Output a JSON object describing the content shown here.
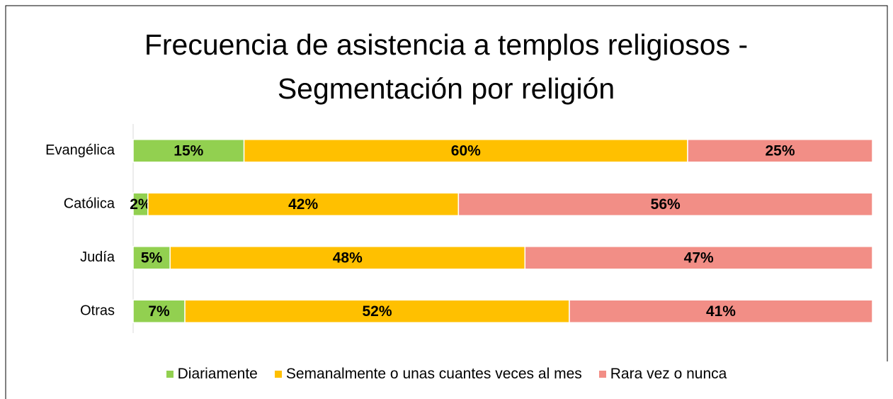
{
  "chart_data": {
    "type": "stacked_bar_horizontal",
    "title": "Frecuencia de asistencia a templos religiosos - Segmentación por religión",
    "categories": [
      "Evangélica",
      "Católica",
      "Judía",
      "Otras"
    ],
    "xlim": [
      0,
      100
    ],
    "series": [
      {
        "name": "Diariamente",
        "color": "#92d050",
        "values": [
          15,
          2,
          5,
          7
        ],
        "value_labels": [
          "15%",
          "2%",
          "5%",
          "7%"
        ]
      },
      {
        "name": "Semanalmente o unas cuantes veces al mes",
        "color": "#ffc000",
        "values": [
          60,
          42,
          48,
          52
        ],
        "value_labels": [
          "60%",
          "42%",
          "48%",
          "52%"
        ]
      },
      {
        "name": "Rara vez o nunca",
        "color": "#f28e86",
        "values": [
          25,
          56,
          47,
          41
        ],
        "value_labels": [
          "25%",
          "56%",
          "47%",
          "41%"
        ]
      }
    ],
    "legend": "bottom"
  }
}
